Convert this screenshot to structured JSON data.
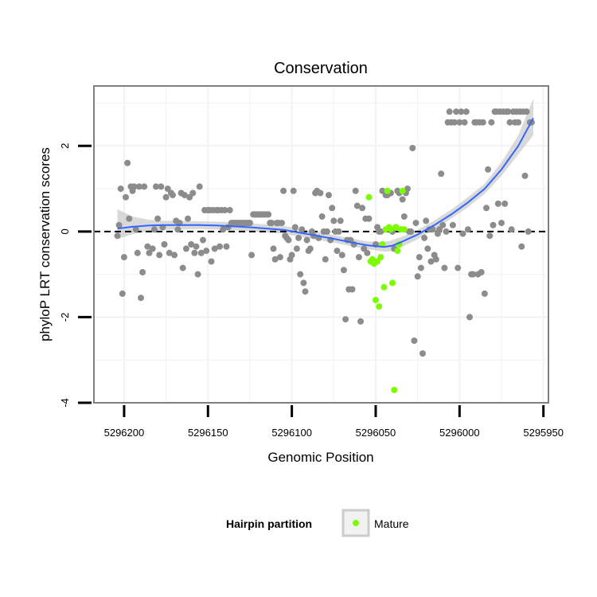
{
  "chart_data": {
    "type": "scatter",
    "title": "Conservation",
    "xlabel": "Genomic Position",
    "ylabel": "phyloP LRT conservation scores",
    "xlim": [
      5296218,
      5295947
    ],
    "x_reversed": true,
    "ylim": [
      -4,
      3.4
    ],
    "xticks": [
      5296200,
      5296150,
      5296100,
      5296050,
      5296000,
      5295950
    ],
    "xtick_labels": [
      "5296200",
      "5296150",
      "5296100",
      "5296050",
      "5296000",
      "5295950"
    ],
    "yticks": [
      -4,
      -2,
      0,
      2
    ],
    "ytick_labels": [
      "-4",
      "-2",
      "0",
      "2"
    ],
    "grid": true,
    "reference_line": {
      "y": 0,
      "style": "dashed",
      "color": "#000000"
    },
    "legend": {
      "position": "bottom",
      "title": "Hairpin partition",
      "entries": [
        {
          "label": "Mature",
          "color": "#7cfc00"
        }
      ]
    },
    "colors": {
      "other": "#8c8c8c",
      "mature": "#7cfc00",
      "smooth": "#3366ff",
      "ribbon": "#cccccc",
      "panel_border": "#7f7f7f",
      "grid": "#f2f2f2"
    },
    "series": [
      {
        "name": "Other",
        "points": [
          [
            5296204,
            -0.1
          ],
          [
            5296203,
            0.15
          ],
          [
            5296202,
            1.0
          ],
          [
            5296201,
            -1.45
          ],
          [
            5296200,
            -0.6
          ],
          [
            5296199,
            0.8
          ],
          [
            5296198,
            1.6
          ],
          [
            5296197,
            0.3
          ],
          [
            5296196,
            1.05
          ],
          [
            5296195,
            0.95
          ],
          [
            5296194,
            1.05
          ],
          [
            5296193,
            0.05
          ],
          [
            5296192,
            -0.5
          ],
          [
            5296191,
            1.05
          ],
          [
            5296190,
            -1.55
          ],
          [
            5296189,
            -0.95
          ],
          [
            5296188,
            1.05
          ],
          [
            5296186,
            -0.35
          ],
          [
            5296185,
            -0.5
          ],
          [
            5296183,
            -0.4
          ],
          [
            5296182,
            0.05
          ],
          [
            5296181,
            1.05
          ],
          [
            5296180,
            0.3
          ],
          [
            5296179,
            -0.55
          ],
          [
            5296178,
            1.05
          ],
          [
            5296177,
            0.1
          ],
          [
            5296176,
            -0.3
          ],
          [
            5296175,
            0.8
          ],
          [
            5296174,
            1.0
          ],
          [
            5296173,
            -0.5
          ],
          [
            5296172,
            0.9
          ],
          [
            5296171,
            0.85
          ],
          [
            5296170,
            -0.55
          ],
          [
            5296169,
            0.25
          ],
          [
            5296168,
            0.05
          ],
          [
            5296167,
            0.2
          ],
          [
            5296166,
            0.9
          ],
          [
            5296165,
            -0.85
          ],
          [
            5296164,
            0.85
          ],
          [
            5296163,
            -0.4
          ],
          [
            5296162,
            0.3
          ],
          [
            5296161,
            0.8
          ],
          [
            5296160,
            -0.3
          ],
          [
            5296159,
            0.9
          ],
          [
            5296158,
            -0.5
          ],
          [
            5296157,
            -0.35
          ],
          [
            5296156,
            -1.0
          ],
          [
            5296155,
            1.05
          ],
          [
            5296154,
            -0.5
          ],
          [
            5296153,
            -0.2
          ],
          [
            5296152,
            0.5
          ],
          [
            5296151,
            -0.45
          ],
          [
            5296150,
            0.5
          ],
          [
            5296149,
            0.5
          ],
          [
            5296148,
            -0.7
          ],
          [
            5296147,
            0.5
          ],
          [
            5296146,
            -0.4
          ],
          [
            5296145,
            0.5
          ],
          [
            5296144,
            0.5
          ],
          [
            5296143,
            -0.35
          ],
          [
            5296142,
            0.5
          ],
          [
            5296141,
            0.05
          ],
          [
            5296140,
            0.5
          ],
          [
            5296139,
            -0.35
          ],
          [
            5296138,
            0.1
          ],
          [
            5296137,
            0.5
          ],
          [
            5296136,
            0.2
          ],
          [
            5296135,
            0.2
          ],
          [
            5296134,
            0.2
          ],
          [
            5296133,
            0.2
          ],
          [
            5296132,
            0.2
          ],
          [
            5296131,
            0.2
          ],
          [
            5296130,
            0.2
          ],
          [
            5296129,
            0.2
          ],
          [
            5296128,
            0.2
          ],
          [
            5296127,
            0.2
          ],
          [
            5296126,
            0.2
          ],
          [
            5296125,
            0.2
          ],
          [
            5296124,
            -0.55
          ],
          [
            5296123,
            0.4
          ],
          [
            5296122,
            0.4
          ],
          [
            5296121,
            0.4
          ],
          [
            5296120,
            0.4
          ],
          [
            5296119,
            0.4
          ],
          [
            5296118,
            0.4
          ],
          [
            5296117,
            0.4
          ],
          [
            5296116,
            0.4
          ],
          [
            5296115,
            0.4
          ],
          [
            5296114,
            0.4
          ],
          [
            5296113,
            0.2
          ],
          [
            5296112,
            0.2
          ],
          [
            5296111,
            -0.4
          ],
          [
            5296110,
            -0.65
          ],
          [
            5296109,
            0.2
          ],
          [
            5296108,
            0.2
          ],
          [
            5296107,
            -0.6
          ],
          [
            5296106,
            0.2
          ],
          [
            5296105,
            0.95
          ],
          [
            5296104,
            -0.1
          ],
          [
            5296103,
            -0.15
          ],
          [
            5296102,
            -0.2
          ],
          [
            5296101,
            -0.65
          ],
          [
            5296100,
            -0.55
          ],
          [
            5296099,
            0.95
          ],
          [
            5296098,
            0.1
          ],
          [
            5296097,
            -0.4
          ],
          [
            5296096,
            -0.15
          ],
          [
            5296095,
            -1.0
          ],
          [
            5296094,
            0.05
          ],
          [
            5296093,
            -1.2
          ],
          [
            5296092,
            -1.4
          ],
          [
            5296091,
            -0.2
          ],
          [
            5296090,
            -0.45
          ],
          [
            5296089,
            -0.4
          ],
          [
            5296088,
            0.0
          ],
          [
            5296087,
            -0.1
          ],
          [
            5296086,
            0.9
          ],
          [
            5296085,
            0.95
          ],
          [
            5296084,
            -0.15
          ],
          [
            5296083,
            0.9
          ],
          [
            5296082,
            0.35
          ],
          [
            5296081,
            0.0
          ],
          [
            5296080,
            -0.65
          ],
          [
            5296079,
            0.0
          ],
          [
            5296078,
            0.85
          ],
          [
            5296077,
            -0.2
          ],
          [
            5296076,
            0.55
          ],
          [
            5296075,
            0.25
          ],
          [
            5296074,
            0.0
          ],
          [
            5296073,
            -0.45
          ],
          [
            5296072,
            0.0
          ],
          [
            5296071,
            0.25
          ],
          [
            5296070,
            -0.55
          ],
          [
            5296069,
            -0.9
          ],
          [
            5296068,
            -2.05
          ],
          [
            5296067,
            -0.2
          ],
          [
            5296066,
            -1.35
          ],
          [
            5296065,
            -0.2
          ],
          [
            5296064,
            -1.35
          ],
          [
            5296063,
            -0.3
          ],
          [
            5296062,
            0.95
          ],
          [
            5296061,
            0.6
          ],
          [
            5296060,
            -0.6
          ],
          [
            5296059,
            -2.1
          ],
          [
            5296058,
            0.55
          ],
          [
            5296057,
            -0.4
          ],
          [
            5296056,
            0.3
          ],
          [
            5296055,
            -0.5
          ],
          [
            5296054,
            0.3
          ],
          [
            5296050,
            -0.3
          ],
          [
            5296049,
            0.1
          ],
          [
            5296048,
            0.0
          ],
          [
            5296047,
            0.0
          ],
          [
            5296046,
            0.95
          ],
          [
            5296044,
            0.85
          ],
          [
            5296043,
            0.85
          ],
          [
            5296042,
            0.9
          ],
          [
            5296041,
            0.9
          ],
          [
            5296040,
            0.0
          ],
          [
            5296039,
            -0.4
          ],
          [
            5296038,
            0.1
          ],
          [
            5296037,
            0.95
          ],
          [
            5296036,
            0.9
          ],
          [
            5296035,
            0.05
          ],
          [
            5296034,
            0.75
          ],
          [
            5296033,
            0.35
          ],
          [
            5296032,
            0.9
          ],
          [
            5296031,
            1.0
          ],
          [
            5296030,
            0.0
          ],
          [
            5296029,
            0.0
          ],
          [
            5296028,
            1.95
          ],
          [
            5296027,
            -2.55
          ],
          [
            5296026,
            0.2
          ],
          [
            5296025,
            -1.05
          ],
          [
            5296024,
            -0.6
          ],
          [
            5296023,
            -0.85
          ],
          [
            5296022,
            -2.85
          ],
          [
            5296021,
            -0.15
          ],
          [
            5296020,
            0.25
          ],
          [
            5296019,
            -0.4
          ],
          [
            5296018,
            0.05
          ],
          [
            5296017,
            -0.7
          ],
          [
            5296016,
            0.05
          ],
          [
            5296015,
            -0.55
          ],
          [
            5296014,
            -0.65
          ],
          [
            5296013,
            -0.05
          ],
          [
            5296012,
            0.05
          ],
          [
            5296011,
            1.35
          ],
          [
            5296010,
            0.15
          ],
          [
            5296009,
            -0.85
          ],
          [
            5296008,
            0.0
          ],
          [
            5296007,
            2.55
          ],
          [
            5296006,
            2.8
          ],
          [
            5296005,
            2.55
          ],
          [
            5296004,
            0.15
          ],
          [
            5296003,
            2.55
          ],
          [
            5296002,
            2.8
          ],
          [
            5296001,
            -0.85
          ],
          [
            5296000,
            2.55
          ],
          [
            5295999,
            2.8
          ],
          [
            5295998,
            -0.05
          ],
          [
            5295997,
            2.55
          ],
          [
            5295996,
            2.8
          ],
          [
            5295995,
            0.05
          ],
          [
            5295994,
            -2.0
          ],
          [
            5295993,
            -1.0
          ],
          [
            5295992,
            -1.0
          ],
          [
            5295991,
            2.55
          ],
          [
            5295990,
            2.55
          ],
          [
            5295989,
            -1.0
          ],
          [
            5295988,
            2.55
          ],
          [
            5295987,
            -0.95
          ],
          [
            5295986,
            2.55
          ],
          [
            5295985,
            -1.45
          ],
          [
            5295984,
            0.55
          ],
          [
            5295983,
            1.45
          ],
          [
            5295982,
            -0.1
          ],
          [
            5295981,
            2.55
          ],
          [
            5295980,
            0.15
          ],
          [
            5295979,
            2.8
          ],
          [
            5295978,
            2.8
          ],
          [
            5295977,
            0.65
          ],
          [
            5295976,
            2.8
          ],
          [
            5295975,
            0.2
          ],
          [
            5295974,
            2.8
          ],
          [
            5295973,
            0.65
          ],
          [
            5295972,
            2.8
          ],
          [
            5295971,
            2.8
          ],
          [
            5295970,
            2.55
          ],
          [
            5295969,
            0.05
          ],
          [
            5295968,
            2.8
          ],
          [
            5295967,
            2.55
          ],
          [
            5295966,
            2.8
          ],
          [
            5295965,
            2.55
          ],
          [
            5295964,
            2.8
          ],
          [
            5295963,
            -0.35
          ],
          [
            5295962,
            2.8
          ],
          [
            5295961,
            1.3
          ],
          [
            5295960,
            2.8
          ],
          [
            5295959,
            0.0
          ],
          [
            5295958,
            2.55
          ],
          [
            5295957,
            2.55
          ]
        ]
      },
      {
        "name": "Mature",
        "points": [
          [
            5296054,
            0.8
          ],
          [
            5296053,
            -0.7
          ],
          [
            5296052,
            -0.65
          ],
          [
            5296051,
            -0.75
          ],
          [
            5296050,
            -1.6
          ],
          [
            5296049,
            -0.7
          ],
          [
            5296048,
            -1.75
          ],
          [
            5296047,
            -0.6
          ],
          [
            5296046,
            -0.3
          ],
          [
            5296045,
            -1.3
          ],
          [
            5296044,
            0.05
          ],
          [
            5296043,
            0.95
          ],
          [
            5296042,
            0.1
          ],
          [
            5296041,
            0.05
          ],
          [
            5296040,
            -1.2
          ],
          [
            5296039,
            -3.7
          ],
          [
            5296038,
            0.1
          ],
          [
            5296037,
            -0.45
          ],
          [
            5296036,
            -0.3
          ],
          [
            5296035,
            0.05
          ],
          [
            5296034,
            0.95
          ],
          [
            5296033,
            0.05
          ]
        ]
      }
    ],
    "smooth": {
      "x": [
        5296204,
        5296195,
        5296185,
        5296175,
        5296165,
        5296155,
        5296145,
        5296135,
        5296125,
        5296115,
        5296105,
        5296095,
        5296085,
        5296075,
        5296065,
        5296055,
        5296045,
        5296040,
        5296035,
        5296025,
        5296015,
        5296005,
        5295995,
        5295985,
        5295975,
        5295965,
        5295956
      ],
      "y": [
        0.07,
        0.11,
        0.14,
        0.15,
        0.15,
        0.15,
        0.14,
        0.12,
        0.1,
        0.07,
        0.04,
        -0.03,
        -0.1,
        -0.17,
        -0.25,
        -0.32,
        -0.36,
        -0.33,
        -0.25,
        -0.07,
        0.15,
        0.4,
        0.68,
        1.0,
        1.45,
        2.0,
        2.65
      ],
      "lower": [
        -0.18,
        -0.06,
        0.01,
        0.04,
        0.05,
        0.06,
        0.05,
        0.03,
        0.01,
        -0.02,
        -0.05,
        -0.12,
        -0.19,
        -0.26,
        -0.34,
        -0.41,
        -0.47,
        -0.46,
        -0.37,
        -0.18,
        0.05,
        0.3,
        0.57,
        0.88,
        1.3,
        1.8,
        2.25
      ],
      "upper": [
        0.52,
        0.35,
        0.27,
        0.25,
        0.25,
        0.24,
        0.23,
        0.22,
        0.2,
        0.16,
        0.13,
        0.06,
        -0.01,
        -0.08,
        -0.16,
        -0.23,
        -0.25,
        -0.2,
        -0.13,
        0.04,
        0.26,
        0.51,
        0.8,
        1.12,
        1.62,
        2.25,
        3.1
      ]
    }
  }
}
